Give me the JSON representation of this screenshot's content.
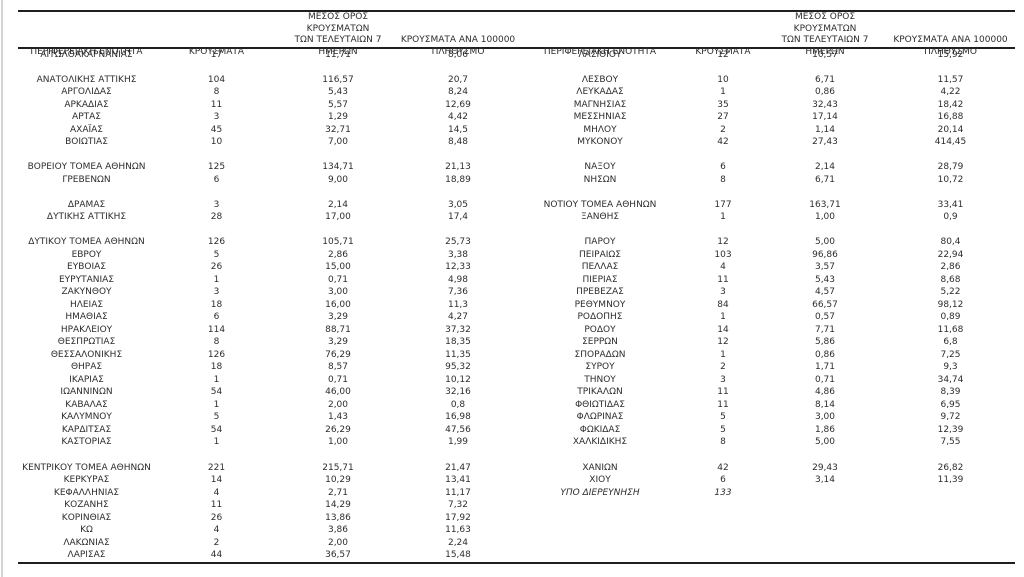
{
  "colors": {
    "ink": "#2d2d2d",
    "line": "#1f1f1f",
    "edge": "#d4d4d4",
    "paper": "#ffffff"
  },
  "table": {
    "headers": {
      "region": "ΠΕΡΙΦΕΡΕΙΑΚΗ ΕΝΟΤΗΤΑ",
      "cases": "ΚΡΟΥΣΜΑΤΑ",
      "avg7": "ΜΕΣΟΣ ΟΡΟΣ ΚΡΟΥΣΜΑΤΩΝ\nΤΩΝ ΤΕΛΕΥΤΑΙΩΝ 7\nΗΜΕΡΩΝ",
      "per100k": "ΚΡΟΥΣΜΑΤΑ ΑΝΑ 100000\nΠΛΗΘΥΣΜΟ"
    },
    "rows": [
      {
        "cells": [
          "ΑΙΤΩΛΟΑΚΑΡΝΑΝΙΑΣ",
          "17",
          "11,71",
          "8,06",
          "ΛΑΣΙΘΙΟΥ",
          "12",
          "10,57",
          "15,92"
        ]
      },
      {
        "cells": [
          "",
          "",
          "",
          "",
          "",
          "",
          "",
          ""
        ]
      },
      {
        "cells": [
          "ΑΝΑΤΟΛΙΚΗΣ ΑΤΤΙΚΗΣ",
          "104",
          "116,57",
          "20,7",
          "ΛΕΣΒΟΥ",
          "10",
          "6,71",
          "11,57"
        ]
      },
      {
        "cells": [
          "ΑΡΓΟΛΙΔΑΣ",
          "8",
          "5,43",
          "8,24",
          "ΛΕΥΚΑΔΑΣ",
          "1",
          "0,86",
          "4,22"
        ]
      },
      {
        "cells": [
          "ΑΡΚΑΔΙΑΣ",
          "11",
          "5,57",
          "12,69",
          "ΜΑΓΝΗΣΙΑΣ",
          "35",
          "32,43",
          "18,42"
        ]
      },
      {
        "cells": [
          "ΑΡΤΑΣ",
          "3",
          "1,29",
          "4,42",
          "ΜΕΣΣΗΝΙΑΣ",
          "27",
          "17,14",
          "16,88"
        ]
      },
      {
        "cells": [
          "ΑΧΑΪΑΣ",
          "45",
          "32,71",
          "14,5",
          "ΜΗΛΟΥ",
          "2",
          "1,14",
          "20,14"
        ]
      },
      {
        "cells": [
          "ΒΟΙΩΤΙΑΣ",
          "10",
          "7,00",
          "8,48",
          "ΜΥΚΟΝΟΥ",
          "42",
          "27,43",
          "414,45"
        ]
      },
      {
        "cells": [
          "",
          "",
          "",
          "",
          "",
          "",
          "",
          ""
        ]
      },
      {
        "cells": [
          "ΒΟΡΕΙΟΥ ΤΟΜΕΑ ΑΘΗΝΩΝ",
          "125",
          "134,71",
          "21,13",
          "ΝΑΞΟΥ",
          "6",
          "2,14",
          "28,79"
        ]
      },
      {
        "cells": [
          "ΓΡΕΒΕΝΩΝ",
          "6",
          "9,00",
          "18,89",
          "ΝΗΣΩΝ",
          "8",
          "6,71",
          "10,72"
        ]
      },
      {
        "cells": [
          "",
          "",
          "",
          "",
          "",
          "",
          "",
          ""
        ]
      },
      {
        "cells": [
          "ΔΡΑΜΑΣ",
          "3",
          "2,14",
          "3,05",
          "ΝΟΤΙΟΥ ΤΟΜΕΑ ΑΘΗΝΩΝ",
          "177",
          "163,71",
          "33,41"
        ]
      },
      {
        "cells": [
          "ΔΥΤΙΚΗΣ ΑΤΤΙΚΗΣ",
          "28",
          "17,00",
          "17,4",
          "ΞΑΝΘΗΣ",
          "1",
          "1,00",
          "0,9"
        ]
      },
      {
        "cells": [
          "",
          "",
          "",
          "",
          "",
          "",
          "",
          ""
        ]
      },
      {
        "cells": [
          "ΔΥΤΙΚΟΥ ΤΟΜΕΑ ΑΘΗΝΩΝ",
          "126",
          "105,71",
          "25,73",
          "ΠΑΡΟΥ",
          "12",
          "5,00",
          "80,4"
        ]
      },
      {
        "cells": [
          "ΕΒΡΟΥ",
          "5",
          "2,86",
          "3,38",
          "ΠΕΙΡΑΙΩΣ",
          "103",
          "96,86",
          "22,94"
        ]
      },
      {
        "cells": [
          "ΕΥΒΟΙΑΣ",
          "26",
          "15,00",
          "12,33",
          "ΠΕΛΛΑΣ",
          "4",
          "3,57",
          "2,86"
        ]
      },
      {
        "cells": [
          "ΕΥΡΥΤΑΝΙΑΣ",
          "1",
          "0,71",
          "4,98",
          "ΠΙΕΡΙΑΣ",
          "11",
          "5,43",
          "8,68"
        ]
      },
      {
        "cells": [
          "ΖΑΚΥΝΘΟΥ",
          "3",
          "3,00",
          "7,36",
          "ΠΡΕΒΕΖΑΣ",
          "3",
          "4,57",
          "5,22"
        ]
      },
      {
        "cells": [
          "ΗΛΕΙΑΣ",
          "18",
          "16,00",
          "11,3",
          "ΡΕΘΥΜΝΟΥ",
          "84",
          "66,57",
          "98,12"
        ]
      },
      {
        "cells": [
          "ΗΜΑΘΙΑΣ",
          "6",
          "3,29",
          "4,27",
          "ΡΟΔΟΠΗΣ",
          "1",
          "0,57",
          "0,89"
        ]
      },
      {
        "cells": [
          "ΗΡΑΚΛΕΙΟΥ",
          "114",
          "88,71",
          "37,32",
          "ΡΟΔΟΥ",
          "14",
          "7,71",
          "11,68"
        ]
      },
      {
        "cells": [
          "ΘΕΣΠΡΩΤΙΑΣ",
          "8",
          "3,29",
          "18,35",
          "ΣΕΡΡΩΝ",
          "12",
          "5,86",
          "6,8"
        ]
      },
      {
        "cells": [
          "ΘΕΣΣΑΛΟΝΙΚΗΣ",
          "126",
          "76,29",
          "11,35",
          "ΣΠΟΡΑΔΩΝ",
          "1",
          "0,86",
          "7,25"
        ]
      },
      {
        "cells": [
          "ΘΗΡΑΣ",
          "18",
          "8,57",
          "95,32",
          "ΣΥΡΟΥ",
          "2",
          "1,71",
          "9,3"
        ]
      },
      {
        "cells": [
          "ΙΚΑΡΙΑΣ",
          "1",
          "0,71",
          "10,12",
          "ΤΗΝΟΥ",
          "3",
          "0,71",
          "34,74"
        ]
      },
      {
        "cells": [
          "ΙΩΑΝΝΙΝΩΝ",
          "54",
          "46,00",
          "32,16",
          "ΤΡΙΚΑΛΩΝ",
          "11",
          "4,86",
          "8,39"
        ]
      },
      {
        "cells": [
          "ΚΑΒΑΛΑΣ",
          "1",
          "2,00",
          "0,8",
          "ΦΘΙΩΤΙΔΑΣ",
          "11",
          "8,14",
          "6,95"
        ]
      },
      {
        "cells": [
          "ΚΑΛΥΜΝΟΥ",
          "5",
          "1,43",
          "16,98",
          "ΦΛΩΡΙΝΑΣ",
          "5",
          "3,00",
          "9,72"
        ]
      },
      {
        "cells": [
          "ΚΑΡΔΙΤΣΑΣ",
          "54",
          "26,29",
          "47,56",
          "ΦΩΚΙΔΑΣ",
          "5",
          "1,86",
          "12,39"
        ]
      },
      {
        "cells": [
          "ΚΑΣΤΟΡΙΑΣ",
          "1",
          "1,00",
          "1,99",
          "ΧΑΛΚΙΔΙΚΗΣ",
          "8",
          "5,00",
          "7,55"
        ]
      },
      {
        "cells": [
          "",
          "",
          "",
          "",
          "",
          "",
          "",
          ""
        ]
      },
      {
        "cells": [
          "ΚΕΝΤΡΙΚΟΥ ΤΟΜΕΑ ΑΘΗΝΩΝ",
          "221",
          "215,71",
          "21,47",
          "ΧΑΝΙΩΝ",
          "42",
          "29,43",
          "26,82"
        ]
      },
      {
        "cells": [
          "ΚΕΡΚΥΡΑΣ",
          "14",
          "10,29",
          "13,41",
          "ΧΙΟΥ",
          "6",
          "3,14",
          "11,39"
        ]
      },
      {
        "cells": [
          "ΚΕΦΑΛΛΗΝΙΑΣ",
          "4",
          "2,71",
          "11,17",
          "ΥΠΟ ΔΙΕΡΕΥΝΗΣΗ",
          "133",
          "",
          ""
        ],
        "italic_right": true
      },
      {
        "cells": [
          "ΚΟΖΑΝΗΣ",
          "11",
          "14,29",
          "7,32",
          "",
          "",
          "",
          ""
        ]
      },
      {
        "cells": [
          "ΚΟΡΙΝΘΙΑΣ",
          "26",
          "13,86",
          "17,92",
          "",
          "",
          "",
          ""
        ]
      },
      {
        "cells": [
          "ΚΩ",
          "4",
          "3,86",
          "11,63",
          "",
          "",
          "",
          ""
        ]
      },
      {
        "cells": [
          "ΛΑΚΩΝΙΑΣ",
          "2",
          "2,00",
          "2,24",
          "",
          "",
          "",
          ""
        ]
      },
      {
        "cells": [
          "ΛΑΡΙΣΑΣ",
          "44",
          "36,57",
          "15,48",
          "",
          "",
          "",
          ""
        ]
      }
    ]
  }
}
